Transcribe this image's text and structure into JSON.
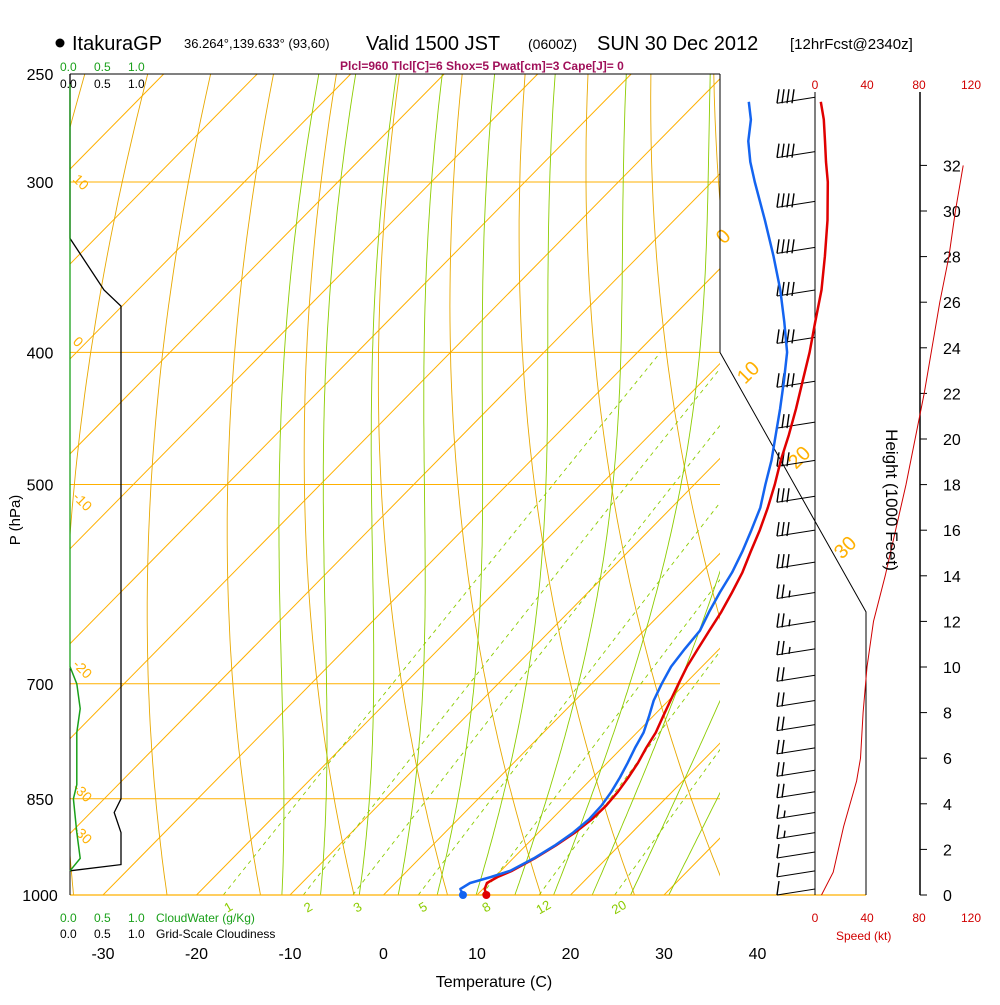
{
  "header": {
    "station": "ItakuraGP",
    "coords": "36.264°,139.633° (93,60)",
    "valid_label": "Valid 1500 JST",
    "zulu": "(0600Z)",
    "date": "SUN 30 Dec 2012",
    "forecast": "[12hrFcst@2340z]"
  },
  "indices_line": "Plcl=960 Tlcl[C]=6 Shox=5 Pwat[cm]=3 Cape[J]= 0",
  "colors": {
    "temperature": "#e00000",
    "dewpoint": "#1464f0",
    "isotherm": "#ffb000",
    "dry_adiabat": "#e8a800",
    "moist_adiabat": "#8ccc00",
    "mixing_ratio": "#8ccc00",
    "cloud_water": "#1aa01a",
    "cloudiness": "#000000",
    "wind_speed": "#d00000"
  },
  "chart_data": {
    "type": "line",
    "title": "Skew-T log-P sounding",
    "xlabel": "Temperature (C)",
    "ylabel": "P (hPa)",
    "x_ticks": [
      "-30",
      "-20",
      "-10",
      "0",
      "10",
      "20",
      "30",
      "40"
    ],
    "p_ticks": [
      "250",
      "300",
      "400",
      "500",
      "700",
      "850",
      "1000"
    ],
    "pressure_range": [
      1000,
      250
    ],
    "isotherm_labels": [
      "10",
      "0",
      "-10",
      "-20",
      "-30",
      "-40",
      "0",
      "10",
      "20",
      "30"
    ],
    "mixing_ratio_labels": [
      "1",
      "2",
      "3",
      "5",
      "8",
      "12",
      "20"
    ],
    "series": [
      {
        "name": "Temperature",
        "points": [
          [
            1000,
            11.0
          ],
          [
            990,
            10.2
          ],
          [
            980,
            9.8
          ],
          [
            970,
            10.3
          ],
          [
            960,
            11.2
          ],
          [
            940,
            12.3
          ],
          [
            920,
            13.2
          ],
          [
            900,
            13.9
          ],
          [
            880,
            14.3
          ],
          [
            860,
            14.4
          ],
          [
            840,
            14.2
          ],
          [
            820,
            13.8
          ],
          [
            800,
            13.3
          ],
          [
            780,
            12.6
          ],
          [
            760,
            12.0
          ],
          [
            740,
            11.1
          ],
          [
            720,
            10.2
          ],
          [
            700,
            9.3
          ],
          [
            680,
            8.4
          ],
          [
            660,
            7.7
          ],
          [
            640,
            7.0
          ],
          [
            620,
            6.3
          ],
          [
            600,
            5.4
          ],
          [
            580,
            4.4
          ],
          [
            560,
            3.1
          ],
          [
            540,
            1.8
          ],
          [
            520,
            0.3
          ],
          [
            500,
            -1.4
          ],
          [
            480,
            -3.3
          ],
          [
            460,
            -5.1
          ],
          [
            440,
            -7.1
          ],
          [
            420,
            -9.3
          ],
          [
            400,
            -11.6
          ],
          [
            380,
            -14.2
          ],
          [
            360,
            -16.9
          ],
          [
            340,
            -20.1
          ],
          [
            320,
            -23.6
          ],
          [
            300,
            -27.6
          ],
          [
            290,
            -29.9
          ],
          [
            280,
            -32.2
          ],
          [
            270,
            -34.6
          ],
          [
            262,
            -36.8
          ]
        ]
      },
      {
        "name": "Dewpoint",
        "points": [
          [
            1000,
            8.5
          ],
          [
            990,
            7.6
          ],
          [
            980,
            8.0
          ],
          [
            970,
            9.6
          ],
          [
            960,
            11.0
          ],
          [
            940,
            12.2
          ],
          [
            920,
            13.1
          ],
          [
            900,
            13.7
          ],
          [
            880,
            14.0
          ],
          [
            860,
            13.9
          ],
          [
            840,
            13.5
          ],
          [
            820,
            12.9
          ],
          [
            800,
            12.2
          ],
          [
            780,
            11.4
          ],
          [
            760,
            10.7
          ],
          [
            740,
            9.6
          ],
          [
            720,
            8.4
          ],
          [
            700,
            7.5
          ],
          [
            680,
            6.7
          ],
          [
            660,
            6.3
          ],
          [
            640,
            6.0
          ],
          [
            620,
            5.0
          ],
          [
            600,
            4.1
          ],
          [
            580,
            3.3
          ],
          [
            560,
            2.2
          ],
          [
            540,
            0.9
          ],
          [
            520,
            -0.5
          ],
          [
            500,
            -2.4
          ],
          [
            480,
            -4.3
          ],
          [
            460,
            -6.5
          ],
          [
            440,
            -8.8
          ],
          [
            420,
            -11.3
          ],
          [
            400,
            -14.0
          ],
          [
            380,
            -17.5
          ],
          [
            360,
            -21.3
          ],
          [
            340,
            -25.6
          ],
          [
            320,
            -30.3
          ],
          [
            300,
            -35.4
          ],
          [
            290,
            -38.0
          ],
          [
            280,
            -40.4
          ],
          [
            270,
            -42.4
          ],
          [
            262,
            -44.5
          ]
        ]
      }
    ],
    "surface_marks": [
      {
        "name": "T",
        "p": 1000,
        "t": 11.0
      },
      {
        "name": "Td",
        "p": 1000,
        "t": 8.5
      }
    ],
    "height_axis": {
      "label": "Height (1000 Feet)",
      "ticks": [
        "0",
        "2",
        "4",
        "6",
        "8",
        "10",
        "12",
        "14",
        "16",
        "18",
        "20",
        "22",
        "24",
        "26",
        "28",
        "30",
        "32"
      ]
    },
    "speed_axis": {
      "label": "Speed (kt)",
      "ticks": [
        "0",
        "40",
        "80",
        "120"
      ]
    },
    "cloud_water_axis": {
      "label": "CloudWater (g/Kg)",
      "ticks": [
        "0.0",
        "0.5",
        "1.0"
      ]
    },
    "cloudiness_axis": {
      "label": "Grid-Scale Cloudiness",
      "ticks": [
        "0.0",
        "0.5",
        "1.0"
      ]
    },
    "wind_speed_profile": [
      [
        0,
        5
      ],
      [
        1,
        14
      ],
      [
        2,
        18
      ],
      [
        3,
        22
      ],
      [
        4,
        27
      ],
      [
        5,
        32
      ],
      [
        6,
        35
      ],
      [
        8,
        37
      ],
      [
        10,
        40
      ],
      [
        12,
        45
      ],
      [
        14,
        54
      ],
      [
        16,
        62
      ],
      [
        18,
        70
      ],
      [
        20,
        77
      ],
      [
        22,
        84
      ],
      [
        24,
        90
      ],
      [
        26,
        96
      ],
      [
        28,
        103
      ],
      [
        30,
        108
      ],
      [
        32,
        114
      ]
    ],
    "cloudiness_profile": [
      [
        250,
        0.0
      ],
      [
        330,
        0.0
      ],
      [
        360,
        0.5
      ],
      [
        370,
        0.75
      ],
      [
        850,
        0.75
      ],
      [
        870,
        0.65
      ],
      [
        900,
        0.75
      ],
      [
        950,
        0.75
      ],
      [
        960,
        0.0
      ]
    ],
    "cloud_water_profile": [
      [
        680,
        0.0
      ],
      [
        700,
        0.1
      ],
      [
        730,
        0.15
      ],
      [
        760,
        0.1
      ],
      [
        830,
        0.1
      ],
      [
        850,
        0.05
      ],
      [
        900,
        0.1
      ],
      [
        940,
        0.15
      ],
      [
        960,
        0.0
      ]
    ],
    "wind_barbs": [
      {
        "p": 260,
        "speed_kt": 40
      },
      {
        "p": 285,
        "speed_kt": 40
      },
      {
        "p": 310,
        "speed_kt": 40
      },
      {
        "p": 335,
        "speed_kt": 40
      },
      {
        "p": 360,
        "speed_kt": 40
      },
      {
        "p": 390,
        "speed_kt": 40
      },
      {
        "p": 420,
        "speed_kt": 40
      },
      {
        "p": 450,
        "speed_kt": 30
      },
      {
        "p": 480,
        "speed_kt": 30
      },
      {
        "p": 510,
        "speed_kt": 30
      },
      {
        "p": 540,
        "speed_kt": 30
      },
      {
        "p": 570,
        "speed_kt": 30
      },
      {
        "p": 600,
        "speed_kt": 25
      },
      {
        "p": 630,
        "speed_kt": 25
      },
      {
        "p": 660,
        "speed_kt": 25
      },
      {
        "p": 690,
        "speed_kt": 20
      },
      {
        "p": 720,
        "speed_kt": 20
      },
      {
        "p": 750,
        "speed_kt": 20
      },
      {
        "p": 780,
        "speed_kt": 20
      },
      {
        "p": 810,
        "speed_kt": 20
      },
      {
        "p": 840,
        "speed_kt": 20
      },
      {
        "p": 870,
        "speed_kt": 15
      },
      {
        "p": 900,
        "speed_kt": 15
      },
      {
        "p": 930,
        "speed_kt": 10
      },
      {
        "p": 960,
        "speed_kt": 10
      },
      {
        "p": 990,
        "speed_kt": 10
      }
    ]
  }
}
